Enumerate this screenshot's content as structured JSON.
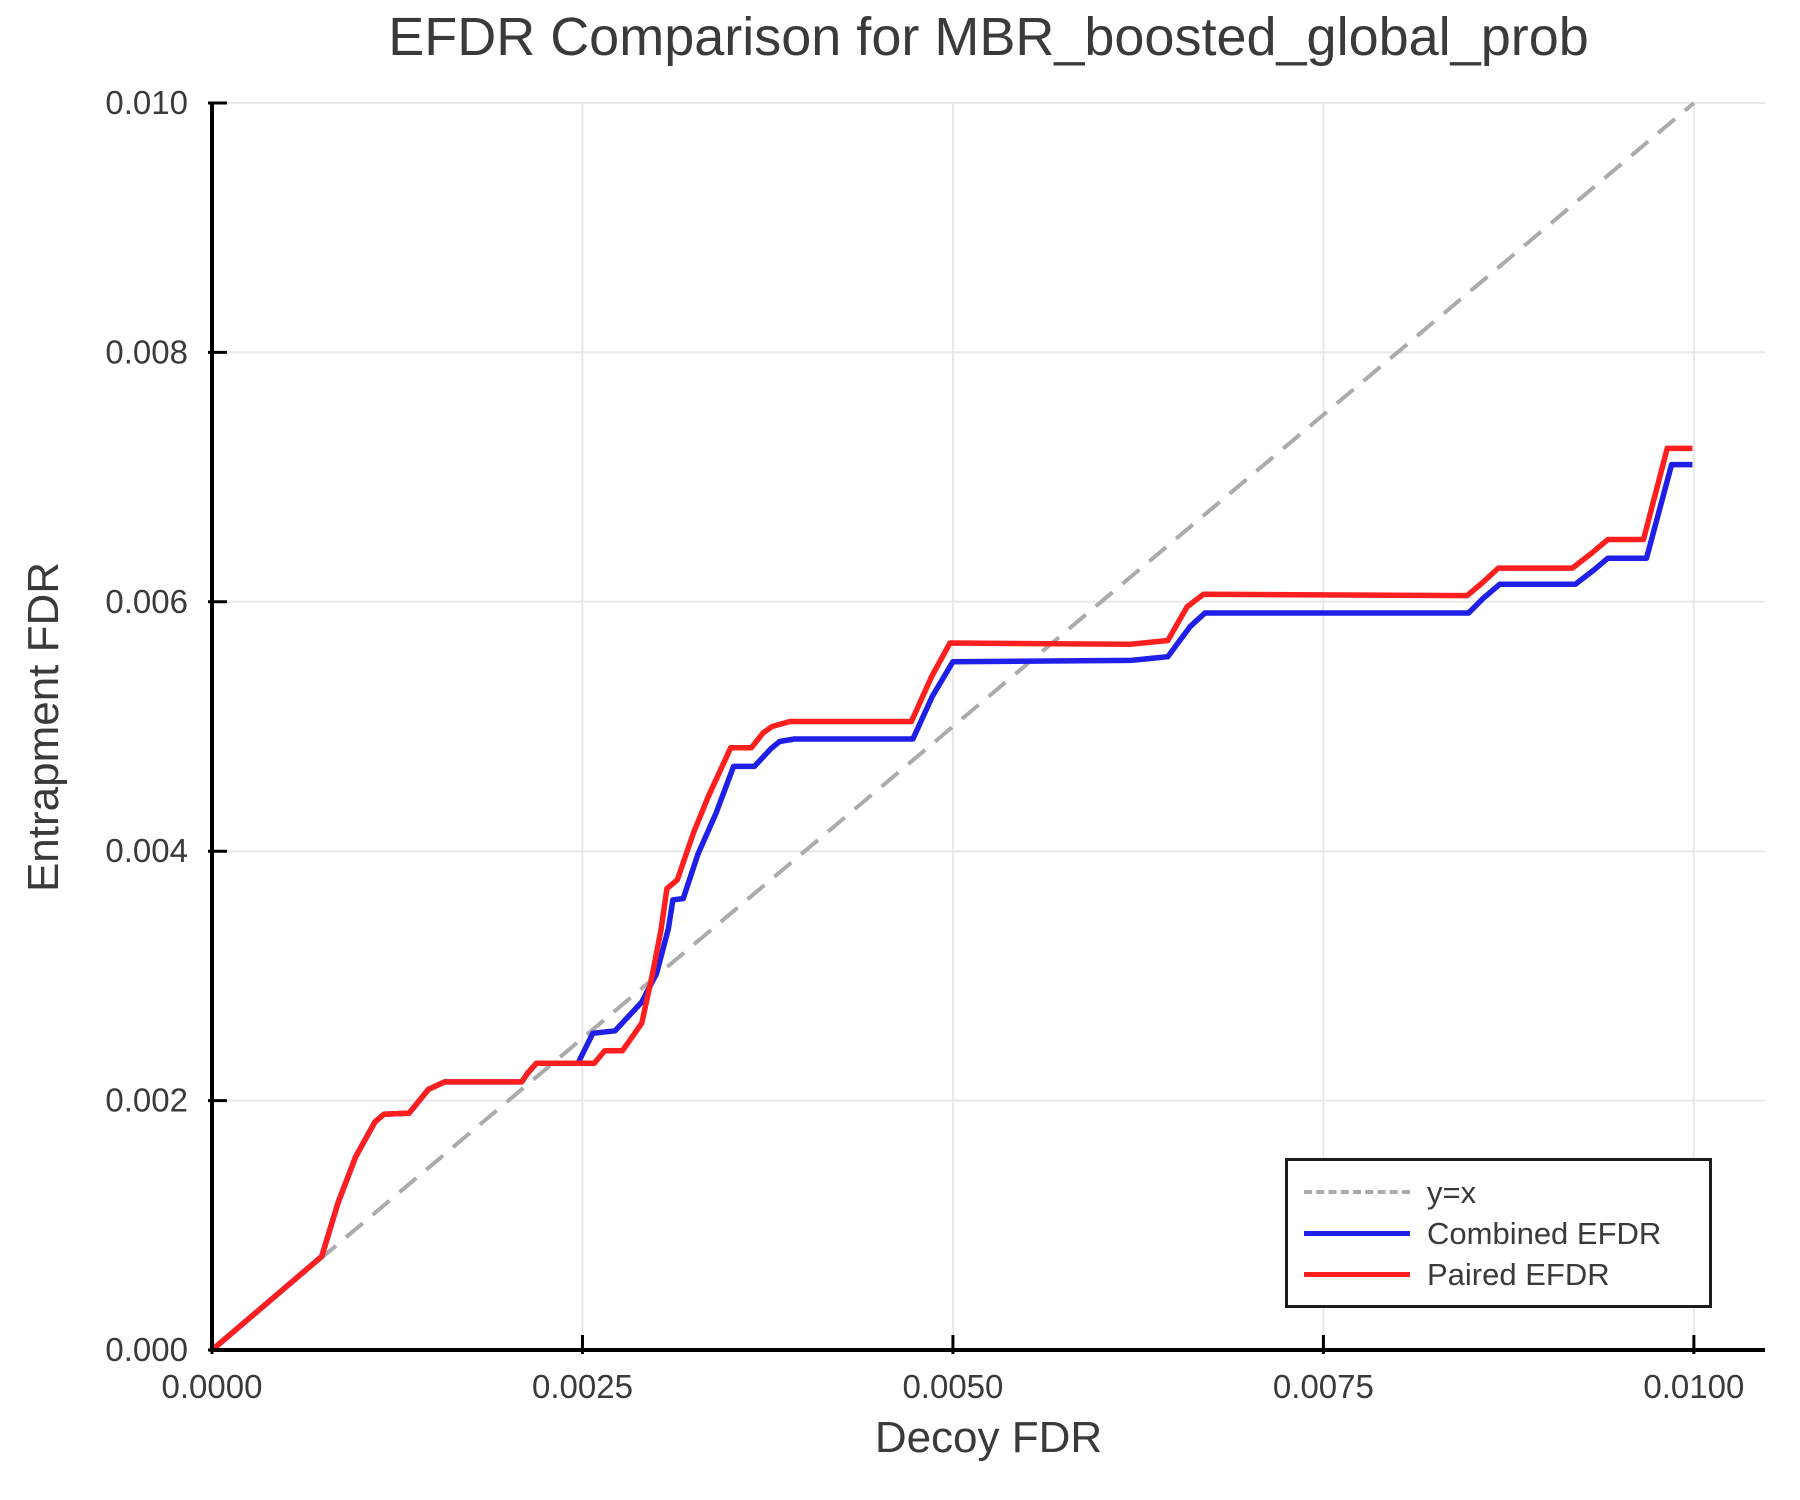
{
  "chart_data": {
    "type": "line",
    "title": "EFDR Comparison for MBR_boosted_global_prob",
    "xlabel": "Decoy FDR",
    "ylabel": "Entrapment FDR",
    "xlim": [
      0,
      0.01048
    ],
    "ylim": [
      0,
      0.01
    ],
    "grid": true,
    "legend_position": "lower right",
    "x_ticks": [
      0.0,
      0.0025,
      0.005,
      0.0075,
      0.01
    ],
    "x_tick_labels": [
      "0.0000",
      "0.0025",
      "0.0050",
      "0.0075",
      "0.0100"
    ],
    "y_ticks": [
      0.0,
      0.002,
      0.004,
      0.006,
      0.008,
      0.01
    ],
    "y_tick_labels": [
      "0.000",
      "0.002",
      "0.004",
      "0.006",
      "0.008",
      "0.010"
    ],
    "reference_line": {
      "label": "y=x",
      "style": "dashed",
      "color": "#ababab",
      "from": [
        0,
        0
      ],
      "to": [
        0.01,
        0.01
      ]
    },
    "series": [
      {
        "name": "Combined EFDR",
        "color": "#1f1fe8",
        "points": [
          [
            0.0,
            0.0
          ],
          [
            0.00074,
            0.00075
          ],
          [
            0.00085,
            0.00118
          ],
          [
            0.00097,
            0.00155
          ],
          [
            0.0011,
            0.00183
          ],
          [
            0.00116,
            0.00189
          ],
          [
            0.00133,
            0.0019
          ],
          [
            0.00146,
            0.00209
          ],
          [
            0.00157,
            0.00215
          ],
          [
            0.00209,
            0.00215
          ],
          [
            0.00213,
            0.00222
          ],
          [
            0.00219,
            0.0023
          ],
          [
            0.00247,
            0.0023
          ],
          [
            0.00257,
            0.00254
          ],
          [
            0.00272,
            0.00256
          ],
          [
            0.0029,
            0.00279
          ],
          [
            0.003,
            0.00302
          ],
          [
            0.00308,
            0.00338
          ],
          [
            0.00311,
            0.00361
          ],
          [
            0.00318,
            0.00362
          ],
          [
            0.00328,
            0.00398
          ],
          [
            0.0034,
            0.0043
          ],
          [
            0.00352,
            0.00468
          ],
          [
            0.00366,
            0.00468
          ],
          [
            0.00377,
            0.00482
          ],
          [
            0.00383,
            0.00488
          ],
          [
            0.00393,
            0.0049
          ],
          [
            0.00473,
            0.0049
          ],
          [
            0.00486,
            0.00524
          ],
          [
            0.005,
            0.00552
          ],
          [
            0.0062,
            0.00553
          ],
          [
            0.00645,
            0.00556
          ],
          [
            0.0066,
            0.0058
          ],
          [
            0.0067,
            0.00591
          ],
          [
            0.00848,
            0.00591
          ],
          [
            0.00858,
            0.00603
          ],
          [
            0.00869,
            0.00614
          ],
          [
            0.0092,
            0.00614
          ],
          [
            0.00932,
            0.00625
          ],
          [
            0.00942,
            0.00635
          ],
          [
            0.00968,
            0.00635
          ],
          [
            0.00985,
            0.0071
          ],
          [
            0.00999,
            0.0071
          ]
        ]
      },
      {
        "name": "Paired EFDR",
        "color": "#ff1f1f",
        "points": [
          [
            0.0,
            0.0
          ],
          [
            0.00074,
            0.00075
          ],
          [
            0.00085,
            0.00118
          ],
          [
            0.00097,
            0.00155
          ],
          [
            0.0011,
            0.00183
          ],
          [
            0.00116,
            0.00189
          ],
          [
            0.00133,
            0.0019
          ],
          [
            0.00146,
            0.00209
          ],
          [
            0.00157,
            0.00215
          ],
          [
            0.00209,
            0.00215
          ],
          [
            0.00213,
            0.00222
          ],
          [
            0.00219,
            0.0023
          ],
          [
            0.00258,
            0.0023
          ],
          [
            0.00265,
            0.0024
          ],
          [
            0.00277,
            0.0024
          ],
          [
            0.0029,
            0.00262
          ],
          [
            0.00297,
            0.003
          ],
          [
            0.00303,
            0.00337
          ],
          [
            0.00307,
            0.0037
          ],
          [
            0.00314,
            0.00377
          ],
          [
            0.00325,
            0.00415
          ],
          [
            0.00335,
            0.00444
          ],
          [
            0.0035,
            0.00483
          ],
          [
            0.00364,
            0.00483
          ],
          [
            0.00372,
            0.00495
          ],
          [
            0.00378,
            0.005
          ],
          [
            0.0039,
            0.00504
          ],
          [
            0.00472,
            0.00504
          ],
          [
            0.00486,
            0.00541
          ],
          [
            0.00498,
            0.00567
          ],
          [
            0.0062,
            0.00566
          ],
          [
            0.00645,
            0.00569
          ],
          [
            0.00658,
            0.00596
          ],
          [
            0.00669,
            0.00606
          ],
          [
            0.00847,
            0.00605
          ],
          [
            0.00857,
            0.00615
          ],
          [
            0.00868,
            0.00627
          ],
          [
            0.00918,
            0.00627
          ],
          [
            0.00931,
            0.00639
          ],
          [
            0.00942,
            0.0065
          ],
          [
            0.00966,
            0.0065
          ],
          [
            0.00982,
            0.00723
          ],
          [
            0.00999,
            0.00723
          ]
        ]
      }
    ],
    "style": {
      "text_color": "#3a3a3a",
      "grid_color": "#e8e8e8",
      "spine_color": "#000000",
      "background": "#ffffff",
      "legend_border": "#1c1c1c"
    }
  }
}
